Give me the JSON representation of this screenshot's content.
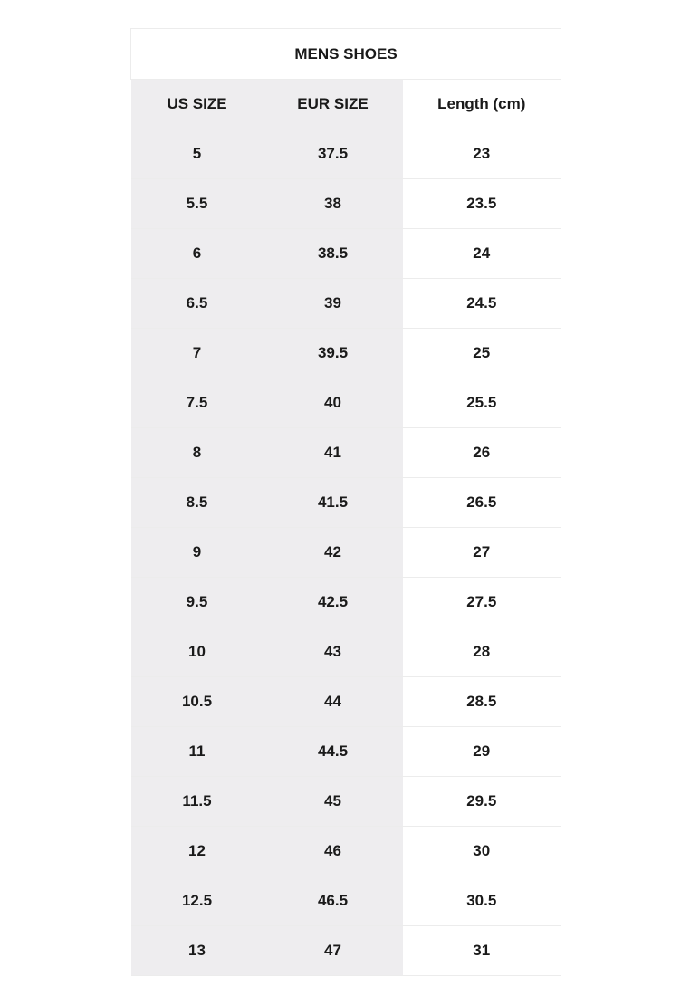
{
  "title": "MENS SHOES",
  "headers": [
    "US SIZE",
    "EUR SIZE",
    "Length (cm)"
  ],
  "rows": [
    [
      "5",
      "37.5",
      "23"
    ],
    [
      "5.5",
      "38",
      "23.5"
    ],
    [
      "6",
      "38.5",
      "24"
    ],
    [
      "6.5",
      "39",
      "24.5"
    ],
    [
      "7",
      "39.5",
      "25"
    ],
    [
      "7.5",
      "40",
      "25.5"
    ],
    [
      "8",
      "41",
      "26"
    ],
    [
      "8.5",
      "41.5",
      "26.5"
    ],
    [
      "9",
      "42",
      "27"
    ],
    [
      "9.5",
      "42.5",
      "27.5"
    ],
    [
      "10",
      "43",
      "28"
    ],
    [
      "10.5",
      "44",
      "28.5"
    ],
    [
      "11",
      "44.5",
      "29"
    ],
    [
      "11.5",
      "45",
      "29.5"
    ],
    [
      "12",
      "46",
      "30"
    ],
    [
      "12.5",
      "46.5",
      "30.5"
    ],
    [
      "13",
      "47",
      "31"
    ]
  ],
  "colors": {
    "shaded_columns": "#eeedef",
    "text": "#1a1a1a"
  }
}
